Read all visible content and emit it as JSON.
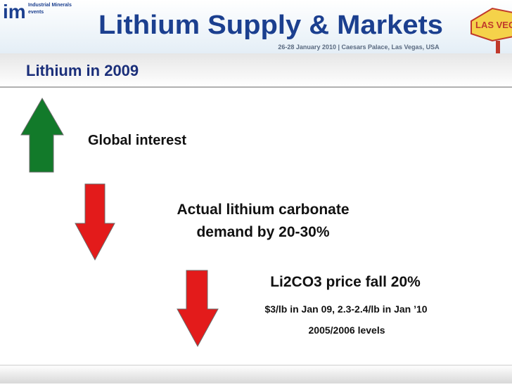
{
  "header": {
    "logo": "im",
    "logo_line1": "Industrial Minerals",
    "logo_line2": "events",
    "title": "Lithium Supply & Markets",
    "subtitle": "26-28 January 2010 | Caesars Palace, Las Vegas, USA",
    "sign": "LAS VEGAS"
  },
  "slide": {
    "heading": "Lithium in 2009",
    "points": [
      {
        "lines": [
          "Global interest"
        ]
      },
      {
        "lines": [
          "Actual lithium carbonate",
          "demand by 20-30%"
        ]
      },
      {
        "lines": [
          "Li2CO3 price fall 20%"
        ],
        "details": [
          "$3/lb in Jan 09, 2.3-2.4/lb in Jan ’10",
          "2005/2006 levels"
        ]
      }
    ]
  }
}
